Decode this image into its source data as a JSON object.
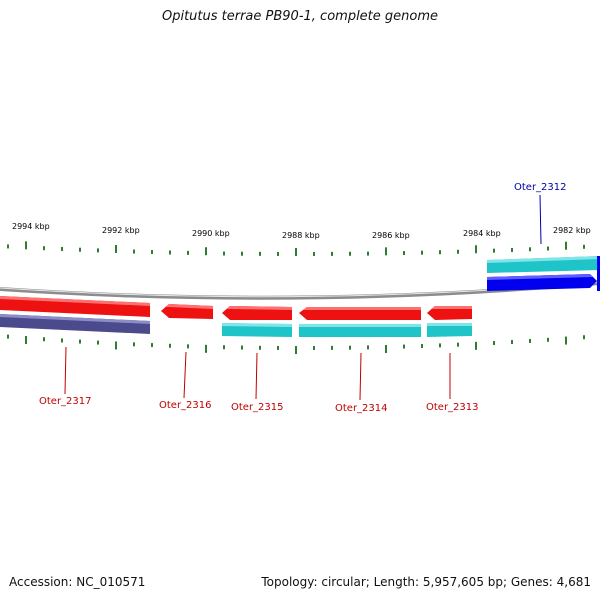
{
  "header": {
    "title": "Opitutus terrae PB90-1, complete genome"
  },
  "footer": {
    "accession": "Accession: NC_010571",
    "summary": "Topology: circular; Length: 5,957,605 bp; Genes: 4,681"
  },
  "colors": {
    "background": "#ffffff",
    "backbone": "#8c8c8c",
    "tick": "#2e7d32",
    "forward_cds": "#0000ee",
    "forward_gene": "#1fc4c8",
    "reverse_cds": "#ee1111",
    "reverse_gene": "#1fc4c8",
    "reverse_gene_alt": "#4b4a8c",
    "label_reverse": "#c00000",
    "label_forward": "#0000aa"
  },
  "kbp_labels": [
    "2994 kbp",
    "2992 kbp",
    "2990 kbp",
    "2988 kbp",
    "2986 kbp",
    "2984 kbp",
    "2982 kbp"
  ],
  "genes": [
    {
      "name": "Oter_2317",
      "strand": "reverse"
    },
    {
      "name": "Oter_2316",
      "strand": "reverse"
    },
    {
      "name": "Oter_2315",
      "strand": "reverse"
    },
    {
      "name": "Oter_2314",
      "strand": "reverse"
    },
    {
      "name": "Oter_2313",
      "strand": "reverse"
    },
    {
      "name": "Oter_2312",
      "strand": "forward"
    }
  ]
}
